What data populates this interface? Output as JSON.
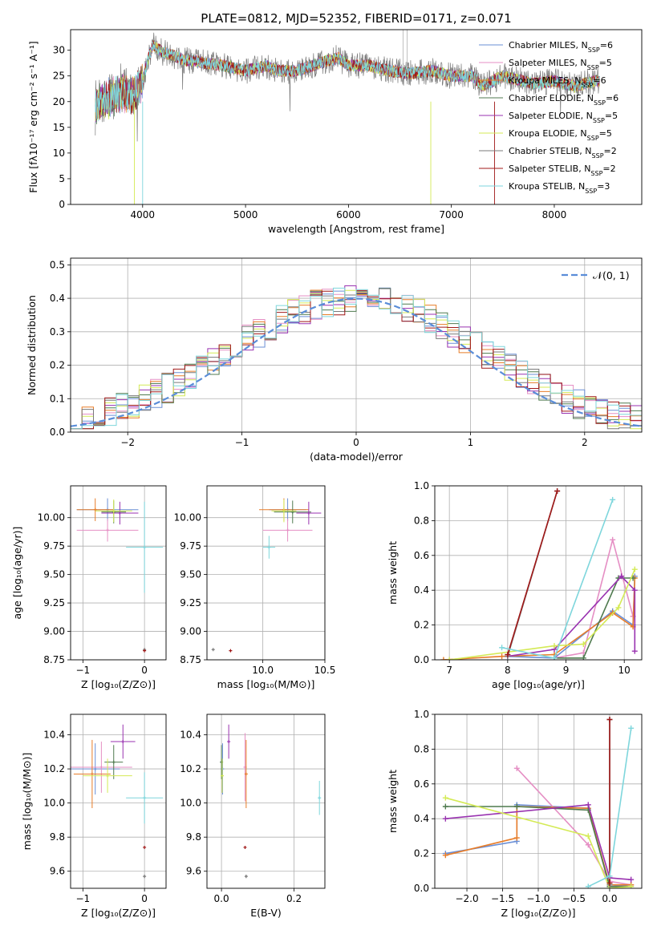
{
  "figure_title": "PLATE=0812, MJD=52352, FIBERID=0171, z=0.071",
  "series": [
    {
      "name": "Chabrier MILES",
      "nssp": "6",
      "color": "#6a8fd6"
    },
    {
      "name": "Salpeter MILES",
      "nssp": "5",
      "color": "#e58fc4"
    },
    {
      "name": "Kroupa MILES",
      "nssp": "6",
      "color": "#e87d29"
    },
    {
      "name": "Chabrier ELODIE",
      "nssp": "6",
      "color": "#4f7a4f"
    },
    {
      "name": "Salpeter ELODIE",
      "nssp": "5",
      "color": "#9932b0"
    },
    {
      "name": "Kroupa ELODIE",
      "nssp": "5",
      "color": "#d4ea55"
    },
    {
      "name": "Chabrier STELIB",
      "nssp": "2",
      "color": "#7a7a7a"
    },
    {
      "name": "Salpeter STELIB",
      "nssp": "2",
      "color": "#a01818"
    },
    {
      "name": "Kroupa STELIB",
      "nssp": "3",
      "color": "#7ed6dc"
    }
  ],
  "chart_data": [
    {
      "id": "spectrum",
      "type": "line",
      "xlabel": "wavelength [Angstrom, rest frame]",
      "ylabel": "Flux [fλ10⁻¹⁷ erg cm⁻² s⁻¹ A⁻¹]",
      "xlim": [
        3300,
        8850
      ],
      "ylim": [
        0,
        34
      ],
      "xticks": [
        4000,
        5000,
        6000,
        7000,
        8000
      ],
      "yticks": [
        0,
        5,
        10,
        15,
        20,
        25,
        30
      ],
      "grid": false,
      "legend": "top-right",
      "continuum": [
        [
          3540,
          19
        ],
        [
          3600,
          20
        ],
        [
          3700,
          21
        ],
        [
          3800,
          22
        ],
        [
          3900,
          21
        ],
        [
          4000,
          24
        ],
        [
          4050,
          28
        ],
        [
          4100,
          31
        ],
        [
          4200,
          29.5
        ],
        [
          4300,
          29
        ],
        [
          4400,
          28
        ],
        [
          4500,
          28
        ],
        [
          4600,
          27.5
        ],
        [
          4800,
          27
        ],
        [
          5000,
          26
        ],
        [
          5200,
          27
        ],
        [
          5300,
          26
        ],
        [
          5500,
          26
        ],
        [
          5800,
          28
        ],
        [
          5900,
          28.5
        ],
        [
          6000,
          27
        ],
        [
          6200,
          27
        ],
        [
          6400,
          26
        ],
        [
          6600,
          25.5
        ],
        [
          6800,
          26
        ],
        [
          7000,
          25
        ],
        [
          7200,
          25
        ],
        [
          7300,
          23
        ],
        [
          7500,
          25
        ],
        [
          7800,
          23.5
        ],
        [
          8000,
          24
        ],
        [
          8200,
          23
        ],
        [
          8400,
          24
        ]
      ]
    },
    {
      "id": "residuals",
      "type": "histogram",
      "xlabel": "(data-model)/error",
      "ylabel": "Normed distribution",
      "xlim": [
        -2.5,
        2.5
      ],
      "ylim": [
        0,
        0.52
      ],
      "xticks": [
        -2,
        -1,
        0,
        1,
        2
      ],
      "yticks": [
        0.0,
        0.1,
        0.2,
        0.3,
        0.4,
        0.5
      ],
      "grid": true,
      "reference_label": "𝒩(0, 1)",
      "legend": "top-right",
      "bin_width": 0.1
    },
    {
      "id": "age_vs_Z",
      "type": "scatter",
      "xlabel": "Z [log₁₀(Z/Z⊙)]",
      "ylabel": "age  [log₁₀(age/yr)]",
      "xlim": [
        -1.2,
        0.35
      ],
      "ylim": [
        8.75,
        10.28
      ],
      "xticks": [
        -1,
        0
      ],
      "yticks": [
        8.75,
        9.0,
        9.25,
        9.5,
        9.75,
        10.0
      ],
      "points": [
        {
          "s": 0,
          "x": -0.6,
          "y": 10.07,
          "ex": 0.5,
          "ey": 0.1
        },
        {
          "s": 1,
          "x": -0.6,
          "y": 9.89,
          "ex": 0.5,
          "ey": 0.1
        },
        {
          "s": 2,
          "x": -0.8,
          "y": 10.07,
          "ex": 0.3,
          "ey": 0.1
        },
        {
          "s": 3,
          "x": -0.5,
          "y": 10.05,
          "ex": 0.2,
          "ey": 0.1
        },
        {
          "s": 4,
          "x": -0.4,
          "y": 10.04,
          "ex": 0.3,
          "ey": 0.1
        },
        {
          "s": 5,
          "x": -0.5,
          "y": 10.06,
          "ex": 0.3,
          "ey": 0.1
        },
        {
          "s": 6,
          "x": -0.0,
          "y": 8.84,
          "ex": 0.0,
          "ey": 0.0
        },
        {
          "s": 7,
          "x": -0.0,
          "y": 8.83,
          "ex": 0.0,
          "ey": 0.0
        },
        {
          "s": 8,
          "x": 0.0,
          "y": 9.74,
          "ex": 0.3,
          "ey": 0.4
        }
      ]
    },
    {
      "id": "age_vs_mass",
      "type": "scatter",
      "xlabel": "mass [log₁₀(M/M⊙)]",
      "ylabel": "",
      "xlim": [
        9.55,
        10.5
      ],
      "ylim": [
        8.75,
        10.28
      ],
      "xticks": [
        10.0,
        10.5
      ],
      "yticks": [
        8.75,
        9.0,
        9.25,
        9.5,
        9.75,
        10.0
      ],
      "points": [
        {
          "s": 0,
          "x": 10.2,
          "y": 10.07,
          "ex": 0.15,
          "ey": 0.1
        },
        {
          "s": 1,
          "x": 10.2,
          "y": 9.89,
          "ex": 0.2,
          "ey": 0.1
        },
        {
          "s": 2,
          "x": 10.17,
          "y": 10.07,
          "ex": 0.2,
          "ey": 0.1
        },
        {
          "s": 3,
          "x": 10.24,
          "y": 10.05,
          "ex": 0.15,
          "ey": 0.1
        },
        {
          "s": 4,
          "x": 10.37,
          "y": 10.04,
          "ex": 0.1,
          "ey": 0.1
        },
        {
          "s": 5,
          "x": 10.17,
          "y": 10.06,
          "ex": 0.1,
          "ey": 0.1
        },
        {
          "s": 6,
          "x": 9.6,
          "y": 8.84,
          "ex": 0.0,
          "ey": 0.0
        },
        {
          "s": 7,
          "x": 9.74,
          "y": 8.83,
          "ex": 0.0,
          "ey": 0.0
        },
        {
          "s": 8,
          "x": 10.05,
          "y": 9.74,
          "ex": 0.05,
          "ey": 0.1
        }
      ]
    },
    {
      "id": "weight_vs_age",
      "type": "line",
      "xlabel": "age  [log₁₀(age/yr)]",
      "ylabel": "mass weight",
      "xlim": [
        6.75,
        10.3
      ],
      "ylim": [
        0,
        1.0
      ],
      "xticks": [
        7,
        8,
        9,
        10
      ],
      "yticks": [
        0.0,
        0.2,
        0.4,
        0.6,
        0.8,
        1.0
      ],
      "lines": [
        {
          "s": 0,
          "pts": [
            [
              8.0,
              0.02
            ],
            [
              8.8,
              0.01
            ],
            [
              9.8,
              0.28
            ],
            [
              10.15,
              0.2
            ],
            [
              10.18,
              0.48
            ]
          ]
        },
        {
          "s": 1,
          "pts": [
            [
              8.8,
              0.01
            ],
            [
              9.3,
              0.04
            ],
            [
              9.8,
              0.69
            ],
            [
              10.15,
              0.25
            ]
          ]
        },
        {
          "s": 2,
          "pts": [
            [
              6.9,
              0.0
            ],
            [
              7.9,
              0.02
            ],
            [
              8.8,
              0.03
            ],
            [
              9.8,
              0.27
            ],
            [
              10.15,
              0.19
            ],
            [
              10.18,
              0.47
            ]
          ]
        },
        {
          "s": 3,
          "pts": [
            [
              8.8,
              0.01
            ],
            [
              9.3,
              0.01
            ],
            [
              9.9,
              0.47
            ],
            [
              10.15,
              0.47
            ]
          ]
        },
        {
          "s": 4,
          "pts": [
            [
              8.0,
              0.02
            ],
            [
              8.8,
              0.06
            ],
            [
              9.95,
              0.48
            ],
            [
              10.18,
              0.4
            ],
            [
              10.18,
              0.05
            ]
          ]
        },
        {
          "s": 5,
          "pts": [
            [
              7.0,
              0.0
            ],
            [
              8.8,
              0.08
            ],
            [
              9.3,
              0.09
            ],
            [
              9.9,
              0.3
            ],
            [
              10.18,
              0.52
            ]
          ]
        },
        {
          "s": 6,
          "pts": [
            [
              8.0,
              0.02
            ],
            [
              8.85,
              0.97
            ]
          ]
        },
        {
          "s": 7,
          "pts": [
            [
              8.0,
              0.03
            ],
            [
              8.85,
              0.97
            ]
          ]
        },
        {
          "s": 8,
          "pts": [
            [
              7.9,
              0.07
            ],
            [
              8.8,
              0.01
            ],
            [
              9.8,
              0.92
            ]
          ]
        }
      ]
    },
    {
      "id": "mass_vs_Z",
      "type": "scatter",
      "xlabel": "Z [log₁₀(Z/Z⊙)]",
      "ylabel": "mass [log₁₀(M/M⊙)]",
      "xlim": [
        -1.2,
        0.35
      ],
      "ylim": [
        9.5,
        10.52
      ],
      "xticks": [
        -1,
        0
      ],
      "yticks": [
        9.6,
        9.8,
        10.0,
        10.2,
        10.4
      ],
      "points": [
        {
          "s": 0,
          "x": -0.8,
          "y": 10.2,
          "ex": 0.4,
          "ey": 0.15
        },
        {
          "s": 1,
          "x": -0.7,
          "y": 10.21,
          "ex": 0.5,
          "ey": 0.15
        },
        {
          "s": 2,
          "x": -0.85,
          "y": 10.17,
          "ex": 0.3,
          "ey": 0.2
        },
        {
          "s": 3,
          "x": -0.5,
          "y": 10.24,
          "ex": 0.15,
          "ey": 0.1
        },
        {
          "s": 4,
          "x": -0.35,
          "y": 10.36,
          "ex": 0.2,
          "ey": 0.1
        },
        {
          "s": 5,
          "x": -0.6,
          "y": 10.16,
          "ex": 0.4,
          "ey": 0.1
        },
        {
          "s": 6,
          "x": 0.0,
          "y": 9.57,
          "ex": 0.0,
          "ey": 0.01
        },
        {
          "s": 7,
          "x": 0.0,
          "y": 9.74,
          "ex": 0.0,
          "ey": 0.0
        },
        {
          "s": 8,
          "x": 0.0,
          "y": 10.03,
          "ex": 0.3,
          "ey": 0.15
        }
      ]
    },
    {
      "id": "mass_vs_EBV",
      "type": "scatter",
      "xlabel": "E(B-V)",
      "ylabel": "",
      "xlim": [
        -0.04,
        0.285
      ],
      "ylim": [
        9.5,
        10.52
      ],
      "xticks": [
        0.0,
        0.2
      ],
      "yticks": [
        9.6,
        9.8,
        10.0,
        10.2,
        10.4
      ],
      "points": [
        {
          "s": 0,
          "x": 0.003,
          "y": 10.2,
          "ey": 0.15
        },
        {
          "s": 1,
          "x": 0.065,
          "y": 10.21,
          "ey": 0.2
        },
        {
          "s": 2,
          "x": 0.068,
          "y": 10.17,
          "ey": 0.2
        },
        {
          "s": 3,
          "x": 0.0,
          "y": 10.24,
          "ey": 0.1
        },
        {
          "s": 4,
          "x": 0.02,
          "y": 10.36,
          "ey": 0.1
        },
        {
          "s": 5,
          "x": 0.002,
          "y": 10.16,
          "ey": 0.1
        },
        {
          "s": 6,
          "x": 0.068,
          "y": 9.57,
          "ey": 0.01
        },
        {
          "s": 7,
          "x": 0.065,
          "y": 9.74,
          "ey": 0.0
        },
        {
          "s": 8,
          "x": 0.27,
          "y": 10.03,
          "ey": 0.1
        }
      ]
    },
    {
      "id": "weight_vs_Z",
      "type": "line",
      "xlabel": "Z [log₁₀(Z/Z⊙)]",
      "ylabel": "mass weight",
      "xlim": [
        -2.45,
        0.45
      ],
      "ylim": [
        0,
        1.0
      ],
      "xticks": [
        -2.0,
        -1.5,
        -1.0,
        -0.5,
        0.0
      ],
      "yticks": [
        0.0,
        0.2,
        0.4,
        0.6,
        0.8,
        1.0
      ],
      "xtick_labels": [
        "−2.0",
        "−1.5",
        "−1.0",
        "−0.5",
        "0.0"
      ],
      "lines": [
        {
          "s": 0,
          "pts": [
            [
              -2.3,
              0.2
            ],
            [
              -1.3,
              0.27
            ],
            [
              -1.3,
              0.48
            ],
            [
              -0.3,
              0.46
            ],
            [
              0.0,
              0.01
            ],
            [
              0.3,
              0.02
            ]
          ]
        },
        {
          "s": 1,
          "pts": [
            [
              -1.3,
              0.69
            ],
            [
              -0.3,
              0.25
            ],
            [
              0.0,
              0.04
            ],
            [
              0.3,
              0.02
            ]
          ]
        },
        {
          "s": 2,
          "pts": [
            [
              -2.3,
              0.19
            ],
            [
              -1.3,
              0.29
            ],
            [
              -1.3,
              0.47
            ],
            [
              -0.3,
              0.46
            ],
            [
              0.0,
              0.02
            ],
            [
              0.3,
              0.02
            ]
          ]
        },
        {
          "s": 3,
          "pts": [
            [
              -2.3,
              0.47
            ],
            [
              -1.3,
              0.47
            ],
            [
              -0.3,
              0.45
            ],
            [
              0.0,
              0.01
            ],
            [
              0.3,
              0.01
            ]
          ]
        },
        {
          "s": 4,
          "pts": [
            [
              -2.3,
              0.4
            ],
            [
              -0.3,
              0.48
            ],
            [
              0.0,
              0.06
            ],
            [
              0.3,
              0.05
            ]
          ]
        },
        {
          "s": 5,
          "pts": [
            [
              -2.3,
              0.52
            ],
            [
              -0.3,
              0.3
            ],
            [
              0.0,
              0.0
            ],
            [
              0.3,
              0.01
            ]
          ]
        },
        {
          "s": 6,
          "pts": [
            [
              0.0,
              0.02
            ],
            [
              0.0,
              0.97
            ]
          ]
        },
        {
          "s": 7,
          "pts": [
            [
              0.0,
              0.03
            ],
            [
              0.0,
              0.97
            ]
          ]
        },
        {
          "s": 8,
          "pts": [
            [
              -0.3,
              0.01
            ],
            [
              0.0,
              0.07
            ],
            [
              0.3,
              0.92
            ]
          ]
        }
      ]
    }
  ]
}
